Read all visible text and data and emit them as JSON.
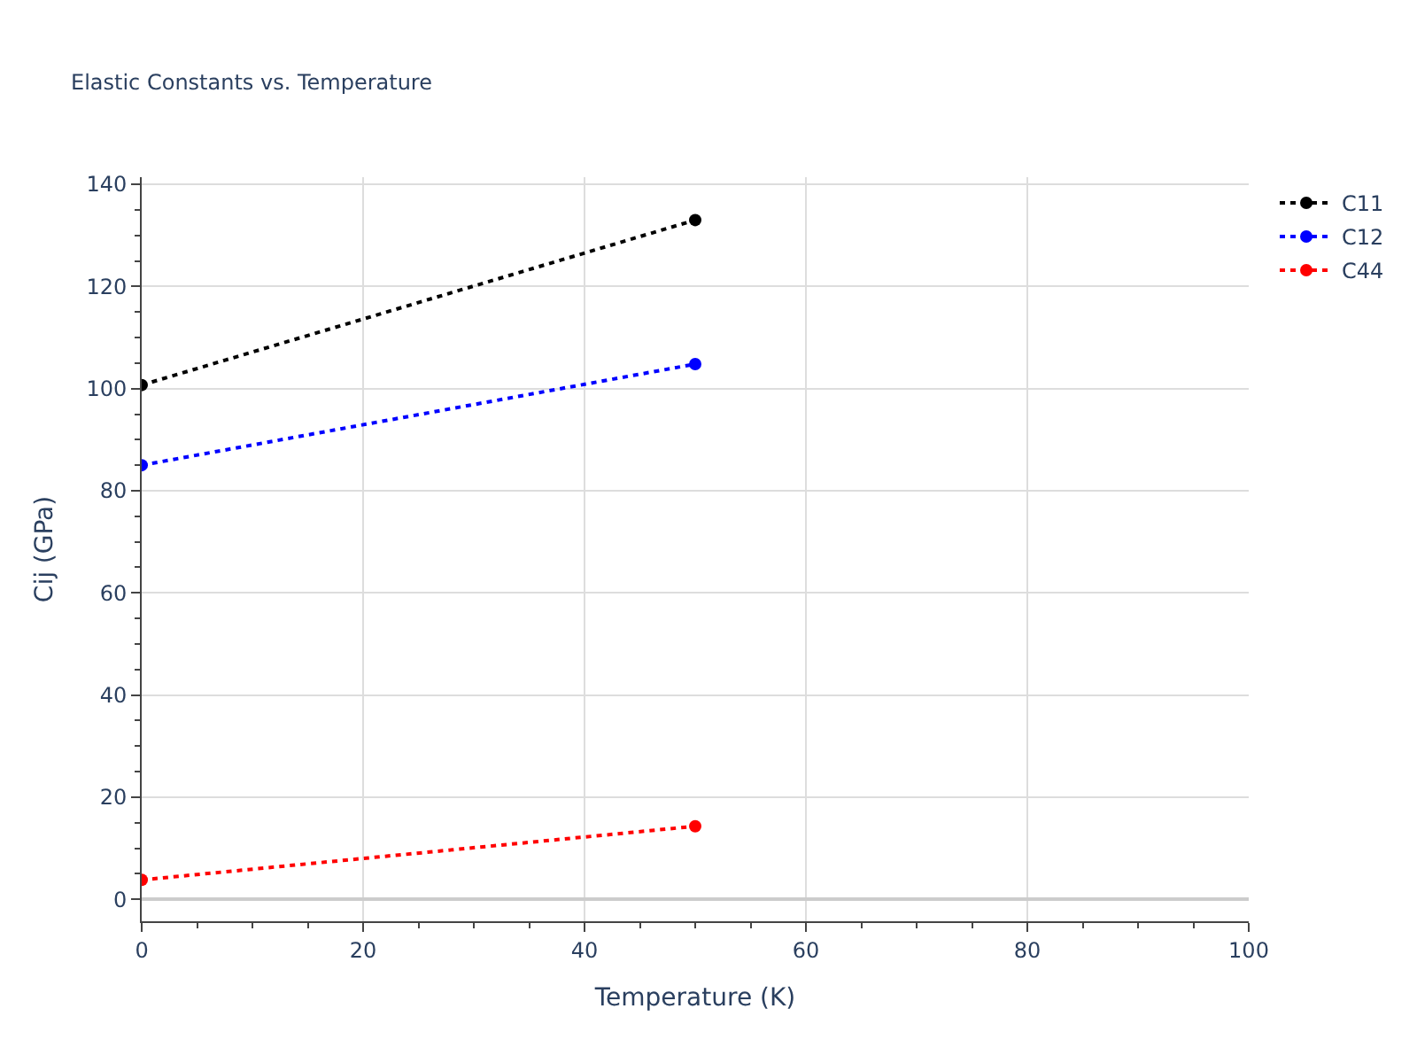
{
  "chart_data": {
    "type": "line",
    "title": "Elastic Constants vs. Temperature",
    "xlabel": "Temperature (K)",
    "ylabel": "Cij (GPa)",
    "x": [
      0,
      50
    ],
    "series": [
      {
        "name": "C11",
        "color": "#000000",
        "values": [
          100.7,
          133.0
        ]
      },
      {
        "name": "C12",
        "color": "#0000ff",
        "values": [
          85.0,
          104.8
        ]
      },
      {
        "name": "C44",
        "color": "#ff0000",
        "values": [
          3.8,
          14.3
        ]
      }
    ],
    "xlim": [
      0,
      100
    ],
    "xticks": [
      0,
      20,
      40,
      60,
      80,
      100
    ],
    "ylim": [
      -4.3,
      141.4
    ],
    "yticks": [
      0,
      20,
      40,
      60,
      80,
      100,
      120,
      140
    ],
    "grid": true,
    "legend": "top right",
    "marker": "circle",
    "line_style": "dotted"
  }
}
